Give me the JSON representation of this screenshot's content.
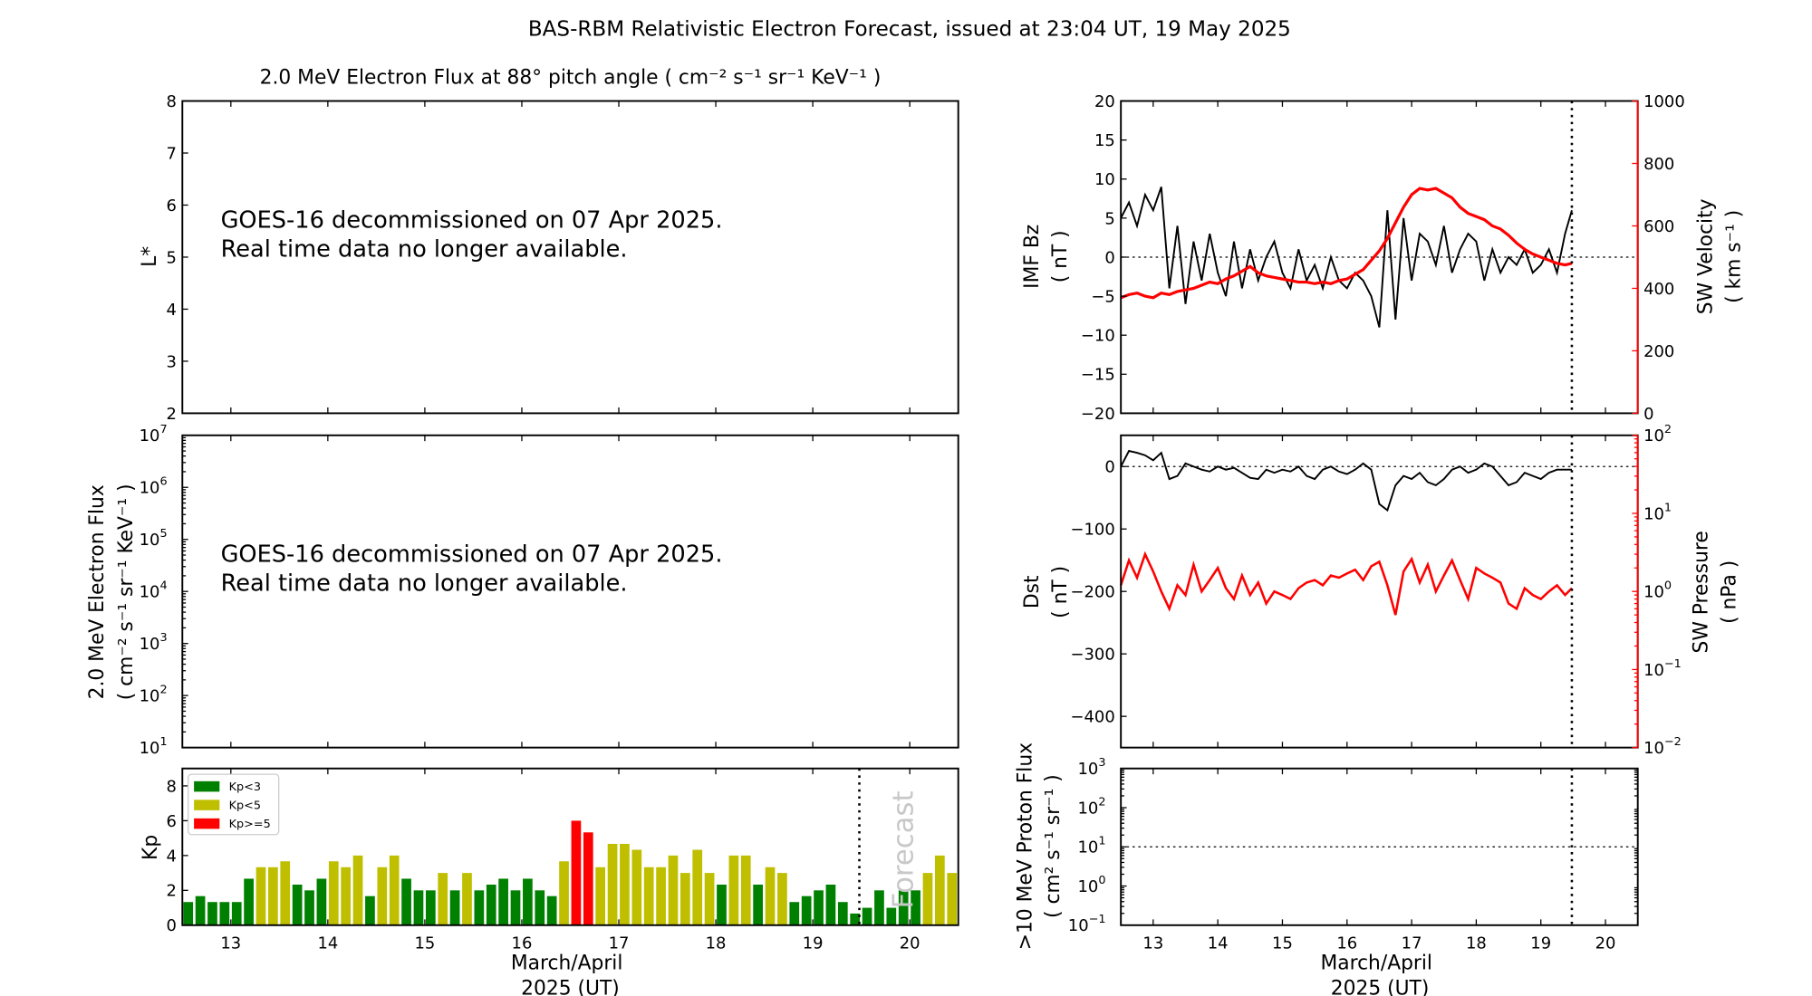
{
  "title": "BAS-RBM Relativistic Electron Forecast, issued at 23:04 UT, 19 May 2025",
  "colors": {
    "kp_low": "#008000",
    "kp_mid": "#bfbf00",
    "kp_high": "#ff0000",
    "sw": "#ff0000",
    "line": "#000000",
    "forecast_text": "#c8c8c8"
  },
  "chart_data": [
    {
      "type": "line",
      "id": "lstar_panel",
      "title": "2.0 MeV Electron Flux at 88° pitch angle ( cm⁻² s⁻¹ sr⁻¹ KeV⁻¹ )",
      "ylabel": "L*",
      "ylim": [
        2,
        8
      ],
      "yticks": [
        "2",
        "3",
        "4",
        "5",
        "6",
        "7",
        "8"
      ],
      "xlim": [
        12.5,
        20.5
      ],
      "message": [
        "GOES-16 decommissioned on 07 Apr 2025.",
        "Real time data no longer available."
      ]
    },
    {
      "type": "line",
      "id": "flux_panel",
      "ylabel": [
        "2.0 MeV Electron Flux",
        "( cm⁻² s⁻¹ sr⁻¹ KeV⁻¹ )"
      ],
      "yscale": "log",
      "ylim_exp": [
        1,
        7
      ],
      "yticks_exp": [
        "1",
        "2",
        "3",
        "4",
        "5",
        "6",
        "7"
      ],
      "xlim": [
        12.5,
        20.5
      ],
      "message": [
        "GOES-16 decommissioned on 07 Apr 2025.",
        "Real time data no longer available."
      ]
    },
    {
      "type": "bar",
      "id": "kp_panel",
      "ylabel": "Kp",
      "ylim": [
        0,
        9
      ],
      "yticks": [
        "0",
        "2",
        "4",
        "6",
        "8"
      ],
      "xlim": [
        12.5,
        20.5
      ],
      "xticks": [
        "13",
        "14",
        "15",
        "16",
        "17",
        "18",
        "19",
        "20"
      ],
      "xlabel": [
        "March/April",
        "2025 (UT)"
      ],
      "legend": {
        "placement": "top-left",
        "entries": [
          "Kp<3",
          "Kp<5",
          "Kp>=5"
        ]
      },
      "forecast_label": "Forecast",
      "now": 19.48,
      "bar_start": 12.5,
      "bar_step_days": 0.125,
      "values": [
        1.33,
        1.67,
        1.33,
        1.33,
        1.33,
        2.67,
        3.33,
        3.33,
        3.67,
        2.33,
        2,
        2.67,
        3.67,
        3.33,
        4,
        1.67,
        3.33,
        4,
        2.67,
        2,
        2,
        3,
        2,
        3,
        2,
        2.33,
        2.67,
        2,
        2.67,
        2,
        1.67,
        3.67,
        6,
        5.33,
        3.33,
        4.67,
        4.67,
        4.33,
        3.33,
        3.33,
        4,
        3,
        4.33,
        3,
        2.33,
        4,
        4,
        2.33,
        3.33,
        3,
        1.33,
        1.67,
        2,
        2.33,
        1.33,
        0.67,
        1,
        2,
        1,
        2,
        2,
        3,
        4,
        3
      ]
    },
    {
      "type": "line",
      "id": "imf_panel",
      "ylabel": [
        "IMF Bz",
        "( nT )"
      ],
      "ylim": [
        -20,
        20
      ],
      "yticks": [
        "20",
        "15",
        "10",
        "5",
        "0",
        "−5",
        "−10",
        "−15",
        "−20"
      ],
      "y2label": [
        "SW Velocity",
        "( km s⁻¹ )"
      ],
      "y2lim": [
        0,
        1000
      ],
      "y2ticks": [
        "1000",
        "800",
        "600",
        "400",
        "200",
        "0"
      ],
      "xlim": [
        12.5,
        20.5
      ],
      "now": 19.48,
      "x_start": 12.5,
      "x_step": 0.125,
      "series": [
        {
          "name": "IMF Bz",
          "values": [
            5,
            7,
            4,
            8,
            6,
            9,
            -4,
            4,
            -6,
            2,
            -3,
            3,
            -2,
            -5,
            2,
            -4,
            1,
            -3,
            0,
            2,
            -2,
            -4,
            1,
            -3,
            -1,
            -4,
            0,
            -3,
            -4,
            -2,
            -3,
            -5,
            -9,
            6,
            -8,
            5,
            -3,
            3,
            2,
            -1,
            4,
            -2,
            1,
            3,
            2,
            -3,
            1,
            -2,
            0,
            -1,
            1,
            -2,
            -1,
            1,
            -2,
            3,
            6
          ]
        },
        {
          "name": "SW Velocity",
          "values": [
            370,
            380,
            385,
            375,
            370,
            385,
            380,
            390,
            395,
            400,
            410,
            420,
            415,
            430,
            440,
            455,
            470,
            450,
            440,
            435,
            430,
            425,
            420,
            420,
            415,
            420,
            415,
            425,
            430,
            445,
            460,
            490,
            520,
            560,
            610,
            660,
            700,
            720,
            715,
            720,
            705,
            690,
            660,
            640,
            630,
            620,
            600,
            590,
            570,
            545,
            525,
            510,
            500,
            490,
            480,
            475,
            480
          ]
        }
      ]
    },
    {
      "type": "line",
      "id": "dst_panel",
      "ylabel": [
        "Dst",
        "( nT )"
      ],
      "ylim": [
        -450,
        50
      ],
      "yticks": [
        "0",
        "−100",
        "−200",
        "−300",
        "−400"
      ],
      "y2label": [
        "SW Pressure",
        "( nPa )"
      ],
      "y2scale": "log",
      "y2lim_exp": [
        -2,
        2
      ],
      "y2ticks_exp": [
        "2",
        "1",
        "0",
        "−1",
        "−2"
      ],
      "xlim": [
        12.5,
        20.5
      ],
      "now": 19.48,
      "x_start": 12.5,
      "x_step": 0.125,
      "series": [
        {
          "name": "Dst",
          "values": [
            0,
            25,
            22,
            18,
            10,
            22,
            -20,
            -15,
            5,
            0,
            -5,
            -8,
            0,
            -5,
            -2,
            -10,
            -18,
            -20,
            -5,
            -10,
            -5,
            -8,
            0,
            -15,
            -20,
            -5,
            0,
            -8,
            -12,
            -5,
            5,
            -5,
            -60,
            -70,
            -30,
            -15,
            -20,
            -10,
            -25,
            -30,
            -20,
            -5,
            0,
            -10,
            -5,
            5,
            0,
            -15,
            -30,
            -25,
            -10,
            -15,
            -20,
            -10,
            -5,
            -5,
            -5
          ]
        },
        {
          "name": "SW Pressure",
          "values": [
            1.2,
            2.5,
            1.5,
            3,
            1.8,
            1.0,
            0.6,
            1.2,
            0.9,
            2.2,
            1.0,
            1.4,
            2.0,
            1.1,
            0.8,
            1.6,
            0.9,
            1.3,
            0.7,
            1.0,
            0.9,
            0.8,
            1.1,
            1.3,
            1.4,
            1.2,
            1.6,
            1.5,
            1.7,
            1.9,
            1.4,
            2.1,
            2.4,
            1.2,
            0.5,
            1.8,
            2.6,
            1.3,
            2.2,
            1.0,
            1.6,
            2.5,
            1.4,
            0.8,
            2.0,
            1.7,
            1.5,
            1.3,
            0.7,
            0.6,
            1.1,
            0.9,
            0.8,
            1.0,
            1.2,
            0.9,
            1.1
          ]
        }
      ]
    },
    {
      "type": "line",
      "id": "proton_panel",
      "ylabel": [
        ">10 MeV Proton Flux",
        "( cm² s⁻¹ sr⁻¹ )"
      ],
      "yscale": "log",
      "ylim_exp": [
        -1,
        3
      ],
      "yticks_exp": [
        "3",
        "2",
        "1",
        "0",
        "−1"
      ],
      "threshold_exp": 1,
      "xlim": [
        12.5,
        20.5
      ],
      "now": 19.48,
      "xticks": [
        "13",
        "14",
        "15",
        "16",
        "17",
        "18",
        "19",
        "20"
      ],
      "xlabel": [
        "March/April",
        "2025 (UT)"
      ]
    }
  ]
}
